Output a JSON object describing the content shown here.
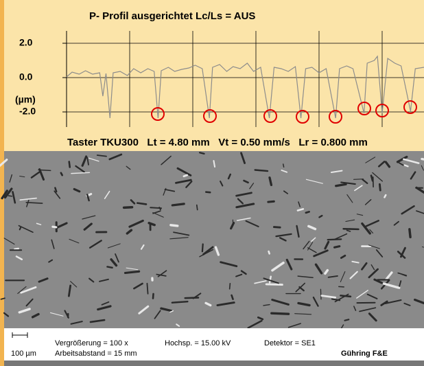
{
  "chart_data": {
    "type": "line",
    "title": "P- Profil ausgerichtet Lc/Ls = AUS",
    "y_label": "(µm)",
    "footer": "Taster TKU300   Lt = 4.80 mm   Vt = 0.50 mm/s   Lr = 0.800 mm",
    "x": [
      0.0,
      0.07,
      0.16,
      0.24,
      0.33,
      0.42,
      0.46,
      0.5,
      0.55,
      0.59,
      0.68,
      0.77,
      0.85,
      0.94,
      1.03,
      1.11,
      1.16,
      1.2,
      1.29,
      1.37,
      1.46,
      1.55,
      1.63,
      1.72,
      1.81,
      1.85,
      1.94,
      2.03,
      2.11,
      2.2,
      2.29,
      2.37,
      2.46,
      2.57,
      2.63,
      2.72,
      2.81,
      2.9,
      2.97,
      3.03,
      3.11,
      3.2,
      3.29,
      3.41,
      3.46,
      3.55,
      3.63,
      3.77,
      3.81,
      3.9,
      3.94,
      4.0,
      4.07,
      4.16,
      4.24,
      4.36,
      4.42,
      4.53
    ],
    "values": [
      0.04,
      0.32,
      0.2,
      0.4,
      0.2,
      0.28,
      -1.08,
      0.24,
      -2.36,
      0.28,
      0.36,
      0.12,
      0.52,
      0.28,
      0.52,
      0.36,
      -2.36,
      0.4,
      0.6,
      0.36,
      0.48,
      0.56,
      0.72,
      0.52,
      -2.36,
      0.6,
      0.76,
      0.36,
      0.64,
      0.52,
      0.84,
      0.36,
      0.6,
      -2.36,
      0.6,
      0.52,
      0.36,
      0.64,
      -2.36,
      0.52,
      0.6,
      0.28,
      0.52,
      -2.36,
      0.52,
      0.68,
      0.52,
      -2.08,
      0.84,
      1.0,
      1.24,
      -2.08,
      1.12,
      0.84,
      0.68,
      -1.96,
      0.52,
      0.6
    ],
    "color": "#8c8c8c",
    "xlim": [
      0,
      4.53
    ],
    "ylim": [
      -2.88,
      2.72
    ],
    "yticks": [
      {
        "value": 2,
        "label": "2.0"
      },
      {
        "value": 0,
        "label": "0.0"
      },
      {
        "value": -2,
        "label": "-2.0"
      }
    ],
    "grid": true
  },
  "caption": {
    "scale_bar": "100 µm",
    "magnification": "Vergrößerung = 100 x",
    "working_distance": "Arbeitsabstand = 15 mm",
    "voltage": "Hochsp. = 15.00 kV",
    "detector": "Detektor = SE1",
    "source": "Gühring F&E"
  }
}
